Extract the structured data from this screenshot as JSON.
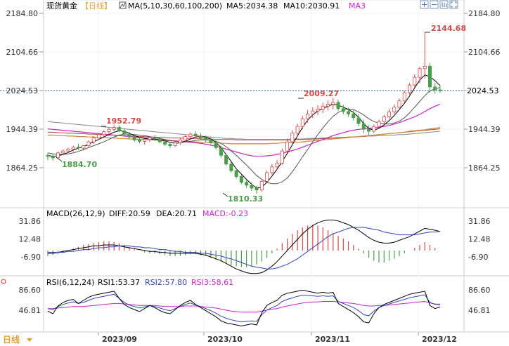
{
  "header": {
    "symbol": "现货黄金",
    "period": "【日线】",
    "ma_label": "MA(5,10,30,60,100,200)",
    "ma5": "MA5:2034.38",
    "ma10": "MA10:2030.91",
    "ma3": "MA3",
    "tools": [
      "zoom-in-icon",
      "zoom-out-icon",
      "chart-mode-icon",
      "fullscreen-icon"
    ]
  },
  "colors": {
    "up": "#d34a4a",
    "down": "#4a9e4a",
    "ma5": "#000000",
    "ma10": "#555555",
    "ma3": "#cc22cc",
    "ma60": "#cc8833",
    "ma100": "#aa4444",
    "ma200": "#888888",
    "current_line": "#2a5a8a",
    "axis_text": "#333333"
  },
  "current_price_label": "2024.53",
  "annotations": [
    {
      "text": "2184.80",
      "type": "tick"
    },
    {
      "text": "2144.68",
      "type": "high"
    },
    {
      "text": "2009.27",
      "type": "local-high"
    },
    {
      "text": "1952.79",
      "type": "local-high"
    },
    {
      "text": "1884.70",
      "type": "local-low"
    },
    {
      "text": "1810.33",
      "type": "low"
    }
  ],
  "xaxis_labels": [
    "日线",
    "2023/09",
    "2023/10",
    "2023/11",
    "2023/12"
  ],
  "macd": {
    "label": "MACD(26,12,9)",
    "diff": "DIFF:20.59",
    "dea": "DEA:20.71",
    "macd": "MACD:-0.23",
    "ticks": [
      "31.86",
      "12.48",
      "-6.90"
    ],
    "tick_values": [
      31.86,
      12.48,
      -6.9
    ]
  },
  "rsi": {
    "label": "RSI(6,12,24)",
    "rsi1": "RSI1:53.37",
    "rsi2": "RSI2:57.80",
    "rsi3": "RSI3:58.61",
    "ticks": [
      "86.60",
      "46.81"
    ],
    "tick_values": [
      86.6,
      46.81
    ]
  },
  "chart_data": {
    "type": "candlestick",
    "price_ticks": [
      2184.8,
      2104.66,
      2024.53,
      1944.39,
      1864.25
    ],
    "price_tick_labels": [
      "2184.80",
      "2104.66",
      "2024.53",
      "1944.39",
      "1864.25"
    ],
    "ylim": [
      1790,
      2200
    ],
    "current_price": 2024.53,
    "candles_ohlc": [
      [
        1890,
        1895,
        1880,
        1888
      ],
      [
        1888,
        1893,
        1879,
        1884.7
      ],
      [
        1885,
        1898,
        1883,
        1895
      ],
      [
        1895,
        1902,
        1890,
        1899
      ],
      [
        1899,
        1906,
        1895,
        1903
      ],
      [
        1903,
        1910,
        1898,
        1907
      ],
      [
        1907,
        1914,
        1901,
        1905
      ],
      [
        1905,
        1912,
        1900,
        1910
      ],
      [
        1910,
        1921,
        1906,
        1918
      ],
      [
        1918,
        1930,
        1914,
        1926
      ],
      [
        1926,
        1936,
        1922,
        1933
      ],
      [
        1933,
        1942,
        1928,
        1939
      ],
      [
        1939,
        1947,
        1933,
        1944
      ],
      [
        1944,
        1952.79,
        1940,
        1948
      ],
      [
        1948,
        1952,
        1938,
        1941
      ],
      [
        1941,
        1946,
        1930,
        1934
      ],
      [
        1934,
        1939,
        1924,
        1928
      ],
      [
        1928,
        1933,
        1918,
        1922
      ],
      [
        1922,
        1928,
        1915,
        1919
      ],
      [
        1919,
        1925,
        1912,
        1923
      ],
      [
        1923,
        1930,
        1918,
        1927
      ],
      [
        1927,
        1932,
        1920,
        1924
      ],
      [
        1924,
        1928,
        1915,
        1918
      ],
      [
        1918,
        1922,
        1909,
        1913
      ],
      [
        1913,
        1918,
        1905,
        1910
      ],
      [
        1910,
        1920,
        1907,
        1916
      ],
      [
        1916,
        1926,
        1912,
        1922
      ],
      [
        1922,
        1932,
        1918,
        1929
      ],
      [
        1929,
        1938,
        1924,
        1934
      ],
      [
        1934,
        1940,
        1926,
        1930
      ],
      [
        1930,
        1936,
        1922,
        1926
      ],
      [
        1926,
        1931,
        1918,
        1922
      ],
      [
        1922,
        1927,
        1912,
        1916
      ],
      [
        1916,
        1921,
        1902,
        1906
      ],
      [
        1906,
        1910,
        1885,
        1890
      ],
      [
        1890,
        1894,
        1868,
        1872
      ],
      [
        1872,
        1876,
        1854,
        1858
      ],
      [
        1858,
        1862,
        1842,
        1846
      ],
      [
        1846,
        1850,
        1830,
        1834
      ],
      [
        1834,
        1840,
        1822,
        1828
      ],
      [
        1828,
        1834,
        1816,
        1822
      ],
      [
        1822,
        1827,
        1810.33,
        1818
      ],
      [
        1818,
        1840,
        1814,
        1836
      ],
      [
        1836,
        1858,
        1832,
        1854
      ],
      [
        1854,
        1872,
        1850,
        1866
      ],
      [
        1866,
        1880,
        1860,
        1874
      ],
      [
        1874,
        1904,
        1870,
        1899
      ],
      [
        1899,
        1925,
        1895,
        1918
      ],
      [
        1918,
        1942,
        1912,
        1936
      ],
      [
        1936,
        1956,
        1930,
        1950
      ],
      [
        1950,
        1972,
        1944,
        1966
      ],
      [
        1966,
        1984,
        1958,
        1976
      ],
      [
        1976,
        1990,
        1968,
        1982
      ],
      [
        1982,
        1994,
        1974,
        1986
      ],
      [
        1986,
        1999,
        1978,
        1992
      ],
      [
        1992,
        2004,
        1983,
        1996
      ],
      [
        1996,
        2009.27,
        1985,
        2000
      ],
      [
        2000,
        2006,
        1982,
        1987
      ],
      [
        1987,
        1995,
        1975,
        1981
      ],
      [
        1981,
        1989,
        1970,
        1976
      ],
      [
        1976,
        1984,
        1962,
        1968
      ],
      [
        1968,
        1976,
        1950,
        1956
      ],
      [
        1956,
        1964,
        1936,
        1944
      ],
      [
        1944,
        1952,
        1932,
        1940
      ],
      [
        1940,
        1954,
        1936,
        1950
      ],
      [
        1950,
        1964,
        1946,
        1960
      ],
      [
        1960,
        1974,
        1956,
        1970
      ],
      [
        1970,
        1986,
        1966,
        1980
      ],
      [
        1980,
        1996,
        1976,
        1990
      ],
      [
        1990,
        2008,
        1986,
        2003
      ],
      [
        2003,
        2024,
        2000,
        2020
      ],
      [
        2020,
        2040,
        2016,
        2036
      ],
      [
        2036,
        2058,
        2032,
        2052
      ],
      [
        2052,
        2074,
        2040,
        2070
      ],
      [
        2070,
        2144.68,
        2050,
        2075
      ],
      [
        2075,
        2082,
        2020,
        2032
      ],
      [
        2032,
        2040,
        2018,
        2026
      ],
      [
        2026,
        2034,
        2020,
        2024.53
      ]
    ],
    "ma5": [
      1890,
      1888,
      1889,
      1892,
      1896,
      1901,
      1905,
      1908,
      1913,
      1918,
      1923,
      1928,
      1933,
      1938,
      1941,
      1940,
      1936,
      1931,
      1927,
      1925,
      1924,
      1923,
      1922,
      1920,
      1917,
      1915,
      1916,
      1919,
      1924,
      1928,
      1929,
      1928,
      1924,
      1917,
      1906,
      1892,
      1877,
      1862,
      1851,
      1840,
      1830,
      1822,
      1824,
      1834,
      1847,
      1861,
      1877,
      1894,
      1912,
      1930,
      1948,
      1963,
      1974,
      1982,
      1987,
      1992,
      1996,
      1994,
      1990,
      1985,
      1979,
      1969,
      1956,
      1946,
      1942,
      1946,
      1953,
      1962,
      1973,
      1985,
      1998,
      2013,
      2030,
      2046,
      2057,
      2053,
      2045,
      2034.38
    ],
    "ma10": [
      1895,
      1893,
      1892,
      1892,
      1893,
      1895,
      1898,
      1902,
      1906,
      1910,
      1914,
      1918,
      1923,
      1928,
      1932,
      1934,
      1934,
      1933,
      1932,
      1931,
      1929,
      1927,
      1925,
      1923,
      1921,
      1919,
      1918,
      1918,
      1919,
      1921,
      1922,
      1922,
      1921,
      1919,
      1915,
      1908,
      1899,
      1890,
      1880,
      1870,
      1859,
      1848,
      1840,
      1834,
      1831,
      1831,
      1835,
      1843,
      1856,
      1871,
      1887,
      1902,
      1918,
      1933,
      1947,
      1960,
      1971,
      1979,
      1984,
      1986,
      1985,
      1980,
      1974,
      1966,
      1960,
      1957,
      1955,
      1955,
      1957,
      1961,
      1968,
      1978,
      1990,
      2002,
      2014,
      2024,
      2028,
      2030.91
    ],
    "ma3": [
      1945,
      1944,
      1943,
      1942,
      1941,
      1940,
      1939,
      1938,
      1937,
      1936,
      1935,
      1934,
      1933,
      1932,
      1931,
      1930,
      1929,
      1928,
      1927,
      1926,
      1925,
      1924,
      1923,
      1922,
      1921,
      1920,
      1919,
      1918,
      1917,
      1916,
      1915,
      1913,
      1911,
      1909,
      1906,
      1903,
      1900,
      1897,
      1894,
      1891,
      1889,
      1888,
      1888,
      1889,
      1890,
      1892,
      1894,
      1897,
      1900,
      1903,
      1907,
      1911,
      1915,
      1919,
      1923,
      1927,
      1931,
      1934,
      1937,
      1940,
      1942,
      1944,
      1945,
      1946,
      1947,
      1948,
      1950,
      1952,
      1955,
      1958,
      1962,
      1966,
      1970,
      1975,
      1981,
      1987,
      1992,
      1996
    ],
    "ma60": [
      1932,
      1932,
      1931,
      1931,
      1930,
      1930,
      1929,
      1929,
      1928,
      1928,
      1927,
      1927,
      1926,
      1926,
      1925,
      1925,
      1924,
      1924,
      1923,
      1923,
      1922,
      1922,
      1921,
      1921,
      1920,
      1920,
      1919,
      1919,
      1918,
      1918,
      1917,
      1917,
      1916,
      1916,
      1915,
      1915,
      1914,
      1914,
      1914,
      1914,
      1914,
      1914,
      1914,
      1914,
      1915,
      1915,
      1916,
      1916,
      1917,
      1917,
      1918,
      1919,
      1920,
      1921,
      1922,
      1923,
      1924,
      1925,
      1926,
      1927,
      1928,
      1929,
      1930,
      1931,
      1932,
      1933,
      1934,
      1935,
      1936,
      1937,
      1938,
      1940,
      1941,
      1942,
      1943,
      1945,
      1946,
      1948
    ],
    "ma100": [
      1938,
      1938,
      1937,
      1937,
      1936,
      1936,
      1935,
      1935,
      1934,
      1934,
      1933,
      1933,
      1932,
      1932,
      1931,
      1931,
      1930,
      1930,
      1929,
      1929,
      1928,
      1928,
      1927,
      1927,
      1926,
      1926,
      1926,
      1925,
      1925,
      1925,
      1924,
      1924,
      1924,
      1923,
      1923,
      1923,
      1923,
      1922,
      1922,
      1922,
      1922,
      1922,
      1922,
      1922,
      1922,
      1922,
      1922,
      1922,
      1922,
      1923,
      1923,
      1923,
      1924,
      1924,
      1925,
      1925,
      1926,
      1926,
      1927,
      1928,
      1928,
      1929,
      1930,
      1931,
      1932,
      1933,
      1934,
      1935,
      1936,
      1937,
      1938,
      1939,
      1940,
      1941,
      1942,
      1943,
      1944,
      1945
    ],
    "ma200": [
      1960,
      1959,
      1958,
      1957,
      1956,
      1955,
      1954,
      1953,
      1952,
      1951,
      1950,
      1949,
      1948,
      1947,
      1946,
      1945,
      1944,
      1943,
      1942,
      1941,
      1940,
      1939,
      1938,
      1937,
      1936,
      1935,
      1934,
      1933,
      1932,
      1931,
      1930,
      1929,
      1928,
      1927,
      1926,
      1925,
      1925,
      1924,
      1924,
      1923,
      1923,
      1923,
      1923,
      1923,
      1923,
      1923,
      1923,
      1923,
      1924,
      1924,
      1924,
      1925,
      1925,
      1925,
      1926,
      1926,
      1926,
      1927,
      1927,
      1928,
      1928,
      1929,
      1929,
      1930,
      1930,
      1931,
      1931,
      1932,
      1932,
      1933,
      1933,
      1934,
      1935,
      1936,
      1937,
      1938,
      1939,
      1940
    ],
    "macd_hist": [
      -6,
      -5,
      -4,
      -2,
      0,
      2,
      4,
      6,
      7,
      8,
      9,
      10,
      10,
      9,
      8,
      6,
      4,
      2,
      0,
      -2,
      -3,
      -3,
      -4,
      -5,
      -6,
      -6,
      -6,
      -5,
      -4,
      -4,
      -5,
      -6,
      -8,
      -10,
      -12,
      -14,
      -16,
      -17,
      -18,
      -18,
      -17,
      -15,
      -12,
      -8,
      -3,
      2,
      8,
      13,
      18,
      22,
      25,
      27,
      28,
      27,
      25,
      22,
      19,
      16,
      13,
      10,
      6,
      2,
      -3,
      -8,
      -11,
      -13,
      -13,
      -11,
      -9,
      -6,
      -3,
      0,
      3,
      6,
      9,
      6,
      3,
      -0.23
    ],
    "macd_diff": [
      -3,
      -3,
      -2,
      -1,
      0,
      1,
      2,
      3,
      4,
      5,
      5,
      6,
      6,
      6,
      5,
      4,
      3,
      2,
      1,
      0,
      -1,
      -1,
      -2,
      -2,
      -3,
      -3,
      -3,
      -3,
      -3,
      -3,
      -4,
      -5,
      -7,
      -9,
      -11,
      -14,
      -17,
      -20,
      -22,
      -24,
      -25,
      -25,
      -24,
      -21,
      -17,
      -12,
      -6,
      0,
      6,
      12,
      18,
      23,
      27,
      30,
      32,
      33,
      33,
      32,
      30,
      28,
      25,
      22,
      18,
      14,
      11,
      9,
      8,
      8,
      9,
      11,
      13,
      15,
      18,
      21,
      24,
      23,
      22,
      20.59
    ],
    "macd_dea": [
      -2,
      -2,
      -2,
      -2,
      -1,
      -1,
      0,
      1,
      1,
      2,
      3,
      3,
      4,
      4,
      5,
      5,
      5,
      4,
      4,
      3,
      3,
      2,
      1,
      1,
      0,
      -1,
      -1,
      -2,
      -2,
      -2,
      -3,
      -3,
      -4,
      -5,
      -6,
      -8,
      -9,
      -11,
      -13,
      -15,
      -17,
      -18,
      -19,
      -20,
      -20,
      -19,
      -17,
      -15,
      -12,
      -9,
      -5,
      -1,
      3,
      7,
      11,
      15,
      18,
      20,
      22,
      24,
      25,
      25,
      25,
      24,
      23,
      22,
      20,
      19,
      18,
      17,
      17,
      17,
      17,
      18,
      19,
      20,
      20,
      20.71
    ],
    "rsi1": [
      45,
      40,
      55,
      62,
      66,
      68,
      60,
      66,
      72,
      76,
      78,
      80,
      82,
      84,
      70,
      58,
      52,
      48,
      44,
      50,
      56,
      52,
      46,
      42,
      40,
      48,
      56,
      62,
      66,
      58,
      52,
      46,
      40,
      34,
      26,
      22,
      20,
      18,
      16,
      18,
      20,
      18,
      42,
      56,
      62,
      66,
      76,
      80,
      82,
      84,
      86,
      84,
      82,
      80,
      82,
      80,
      82,
      60,
      54,
      48,
      42,
      34,
      24,
      22,
      40,
      52,
      58,
      62,
      66,
      70,
      74,
      78,
      80,
      82,
      84,
      56,
      50,
      53.37
    ],
    "rsi2": [
      50,
      48,
      54,
      58,
      61,
      63,
      60,
      62,
      66,
      70,
      72,
      74,
      76,
      78,
      70,
      62,
      57,
      54,
      51,
      53,
      56,
      54,
      51,
      48,
      46,
      50,
      54,
      58,
      61,
      57,
      54,
      50,
      46,
      41,
      35,
      31,
      28,
      26,
      24,
      25,
      26,
      25,
      38,
      47,
      52,
      56,
      64,
      68,
      71,
      74,
      76,
      76,
      75,
      74,
      75,
      74,
      75,
      64,
      60,
      56,
      52,
      46,
      38,
      36,
      45,
      52,
      56,
      59,
      62,
      65,
      68,
      71,
      73,
      75,
      77,
      62,
      58,
      57.8
    ],
    "rsi3": [
      50,
      50,
      51,
      52,
      53,
      54,
      54,
      54,
      55,
      56,
      57,
      58,
      59,
      60,
      60,
      59,
      58,
      57,
      56,
      56,
      56,
      56,
      55,
      54,
      54,
      54,
      54,
      55,
      55,
      55,
      54,
      53,
      52,
      51,
      49,
      47,
      45,
      44,
      43,
      43,
      43,
      43,
      45,
      47,
      49,
      50,
      53,
      55,
      57,
      59,
      61,
      62,
      63,
      63,
      64,
      64,
      64,
      63,
      62,
      61,
      60,
      58,
      56,
      55,
      55,
      56,
      56,
      57,
      58,
      59,
      60,
      61,
      62,
      63,
      64,
      61,
      59,
      58.61
    ],
    "rsi_ylim": [
      5,
      100
    ],
    "macd_ylim": [
      -30,
      42
    ]
  }
}
